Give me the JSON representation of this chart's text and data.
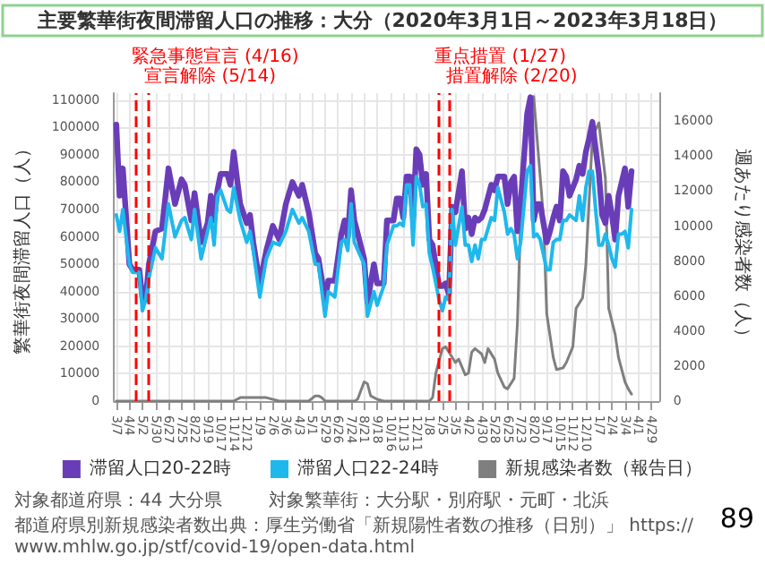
{
  "chart_data": {
    "type": "line",
    "title": "主要繁華街夜間滞留人口の推移：大分（2020年3月1日～2023年3月18日）",
    "ylabel": "繁華街夜間滞留人口（人）",
    "y2label": "週あたり感染者数（人）",
    "x": [
      "2020-03-07",
      "2020-03-14",
      "2020-03-21",
      "2020-04-04",
      "2020-04-11",
      "2020-04-25",
      "2020-05-02",
      "2020-05-09",
      "2020-05-16",
      "2020-05-30",
      "2020-06-13",
      "2020-06-27",
      "2020-07-11",
      "2020-07-25",
      "2020-08-01",
      "2020-08-15",
      "2020-08-22",
      "2020-09-05",
      "2020-09-19",
      "2020-09-26",
      "2020-10-03",
      "2020-10-10",
      "2020-10-17",
      "2020-10-31",
      "2020-11-07",
      "2020-11-14",
      "2020-11-28",
      "2020-12-12",
      "2020-12-19",
      "2020-12-26",
      "2021-01-09",
      "2021-01-23",
      "2021-02-06",
      "2021-02-20",
      "2021-03-06",
      "2021-03-20",
      "2021-04-03",
      "2021-04-10",
      "2021-04-24",
      "2021-05-08",
      "2021-05-15",
      "2021-05-29",
      "2021-06-05",
      "2021-06-19",
      "2021-07-03",
      "2021-07-10",
      "2021-07-17",
      "2021-07-24",
      "2021-07-31",
      "2021-08-21",
      "2021-08-28",
      "2021-09-11",
      "2021-09-18",
      "2021-10-02",
      "2021-10-09",
      "2021-10-23",
      "2021-10-30",
      "2021-11-06",
      "2021-11-13",
      "2021-11-20",
      "2021-11-27",
      "2021-12-04",
      "2021-12-11",
      "2021-12-18",
      "2021-12-25",
      "2022-01-01",
      "2022-01-08",
      "2022-01-15",
      "2022-01-29",
      "2022-02-05",
      "2022-02-12",
      "2022-02-19",
      "2022-02-26",
      "2022-03-05",
      "2022-03-19",
      "2022-03-26",
      "2022-04-02",
      "2022-04-09",
      "2022-04-16",
      "2022-04-23",
      "2022-04-30",
      "2022-05-07",
      "2022-05-21",
      "2022-05-28",
      "2022-06-04",
      "2022-06-18",
      "2022-06-25",
      "2022-07-02",
      "2022-07-09",
      "2022-07-16",
      "2022-07-23",
      "2022-08-06",
      "2022-08-13",
      "2022-08-20",
      "2022-08-27",
      "2022-09-03",
      "2022-09-17",
      "2022-09-24",
      "2022-10-01",
      "2022-10-08",
      "2022-10-15",
      "2022-10-22",
      "2022-10-29",
      "2022-11-05",
      "2022-11-19",
      "2022-11-26",
      "2022-12-03",
      "2022-12-10",
      "2022-12-17",
      "2022-12-24",
      "2022-12-31",
      "2023-01-07",
      "2023-01-14",
      "2023-01-21",
      "2023-01-28",
      "2023-02-04",
      "2023-02-11",
      "2023-02-18",
      "2023-02-25",
      "2023-03-04",
      "2023-03-11",
      "2023-03-18"
    ],
    "series": [
      {
        "name": "滞留人口20-22時",
        "color": "#6a3db8",
        "values": [
          101000,
          75000,
          85000,
          50000,
          48000,
          48000,
          38000,
          37000,
          50000,
          62000,
          63000,
          85000,
          72000,
          81000,
          79000,
          66000,
          76000,
          58000,
          65000,
          75000,
          66000,
          77000,
          83000,
          83000,
          79000,
          91000,
          72000,
          65000,
          68000,
          58000,
          43000,
          55000,
          64000,
          59000,
          72000,
          80000,
          75000,
          79000,
          69000,
          54000,
          52000,
          37000,
          44000,
          44000,
          61000,
          66000,
          60000,
          77000,
          66000,
          52000,
          36000,
          50000,
          43000,
          43000,
          66000,
          66000,
          74000,
          74000,
          67000,
          82000,
          82000,
          67000,
          92000,
          90000,
          79000,
          83000,
          59000,
          57000,
          42000,
          42000,
          43000,
          39000,
          71000,
          69000,
          84000,
          63000,
          67000,
          61000,
          67000,
          66000,
          67000,
          70000,
          79000,
          77000,
          82000,
          82000,
          72000,
          80000,
          82000,
          62000,
          72000,
          105000,
          111000,
          66000,
          72000,
          72000,
          58000,
          62000,
          67000,
          71000,
          66000,
          84000,
          82000,
          75000,
          81000,
          86000,
          83000,
          91000,
          96000,
          102000,
          92000,
          83000,
          68000,
          65000,
          75000,
          68000,
          59000,
          75000,
          80000,
          85000,
          71000,
          84000
        ]
      },
      {
        "name": "滞留人口22-24時",
        "color": "#1fb8ec",
        "values": [
          68000,
          62000,
          70000,
          50000,
          47000,
          47000,
          33000,
          37000,
          45000,
          56000,
          52000,
          72000,
          60000,
          66000,
          67000,
          59000,
          70000,
          52000,
          62000,
          67000,
          57000,
          75000,
          77000,
          70000,
          69000,
          78000,
          66000,
          58000,
          62000,
          55000,
          38000,
          52000,
          58000,
          57000,
          62000,
          70000,
          65000,
          67000,
          62000,
          50000,
          50000,
          31000,
          40000,
          38000,
          58000,
          59000,
          55000,
          72000,
          58000,
          50000,
          31000,
          40000,
          35000,
          42000,
          57000,
          64000,
          64000,
          65000,
          64000,
          79000,
          79000,
          57000,
          82000,
          79000,
          71000,
          72000,
          54000,
          49000,
          37000,
          33000,
          38000,
          37000,
          70000,
          57000,
          71000,
          57000,
          57000,
          51000,
          57000,
          52000,
          59000,
          59000,
          67000,
          66000,
          78000,
          69000,
          61000,
          63000,
          61000,
          52000,
          58000,
          84000,
          86000,
          60000,
          61000,
          59000,
          48000,
          48000,
          58000,
          59000,
          59000,
          66000,
          66000,
          68000,
          66000,
          75000,
          66000,
          78000,
          84000,
          84000,
          70000,
          57000,
          57000,
          61000,
          57000,
          52000,
          49000,
          61000,
          61000,
          62000,
          56000,
          70000
        ]
      },
      {
        "name": "新規感染者数（報告日）",
        "color": "#7f7f7f",
        "axis": "y2",
        "x": [
          "2020-03-07",
          "2020-11-14",
          "2020-11-28",
          "2020-12-12",
          "2021-01-02",
          "2021-01-23",
          "2021-02-20",
          "2021-04-17",
          "2021-04-24",
          "2021-05-08",
          "2021-05-15",
          "2021-05-22",
          "2021-05-29",
          "2021-06-12",
          "2021-07-31",
          "2021-08-07",
          "2021-08-14",
          "2021-08-21",
          "2021-08-28",
          "2021-09-04",
          "2021-09-18",
          "2021-10-02",
          "2022-01-08",
          "2022-01-15",
          "2022-01-22",
          "2022-02-05",
          "2022-02-12",
          "2022-02-19",
          "2022-03-05",
          "2022-03-12",
          "2022-03-26",
          "2022-04-02",
          "2022-04-09",
          "2022-04-16",
          "2022-04-30",
          "2022-05-07",
          "2022-05-14",
          "2022-05-28",
          "2022-06-04",
          "2022-06-18",
          "2022-06-25",
          "2022-07-09",
          "2022-07-16",
          "2022-07-23",
          "2022-08-06",
          "2022-08-20",
          "2022-08-27",
          "2022-09-10",
          "2022-09-17",
          "2022-10-01",
          "2022-10-08",
          "2022-10-22",
          "2022-10-29",
          "2022-11-12",
          "2022-11-19",
          "2022-12-03",
          "2022-12-10",
          "2022-12-17",
          "2022-12-24",
          "2023-01-07",
          "2023-01-21",
          "2023-01-28",
          "2023-02-11",
          "2023-02-18",
          "2023-03-04",
          "2023-03-11",
          "2023-03-18"
        ],
        "values": [
          0,
          0,
          200,
          200,
          200,
          200,
          0,
          0,
          0,
          300,
          300,
          200,
          0,
          0,
          0,
          100,
          600,
          1100,
          1000,
          300,
          100,
          0,
          0,
          200,
          1600,
          3000,
          3100,
          2800,
          2200,
          2400,
          1500,
          1600,
          2800,
          3000,
          2700,
          2200,
          3000,
          2400,
          1600,
          800,
          700,
          1300,
          4400,
          10500,
          16400,
          17400,
          15100,
          10500,
          5000,
          2500,
          1800,
          1900,
          2200,
          3100,
          5300,
          5900,
          7800,
          11400,
          15100,
          15900,
          12700,
          5300,
          3800,
          2500,
          1100,
          700,
          400
        ]
      }
    ],
    "xlim": [
      "2020-03-02",
      "2023-05-16"
    ],
    "xticks": [
      {
        "value": "2020-03-07",
        "label": "3/7"
      },
      {
        "value": "2020-04-04",
        "label": "4/4"
      },
      {
        "value": "2020-05-02",
        "label": "5/2"
      },
      {
        "value": "2020-05-30",
        "label": "5/30"
      },
      {
        "value": "2020-06-27",
        "label": "6/27"
      },
      {
        "value": "2020-07-25",
        "label": "7/25"
      },
      {
        "value": "2020-08-22",
        "label": "8/22"
      },
      {
        "value": "2020-09-19",
        "label": "9/19"
      },
      {
        "value": "2020-10-17",
        "label": "10/17"
      },
      {
        "value": "2020-11-14",
        "label": "11/14"
      },
      {
        "value": "2020-12-12",
        "label": "12/12"
      },
      {
        "value": "2021-01-09",
        "label": "1/9"
      },
      {
        "value": "2021-02-06",
        "label": "2/6"
      },
      {
        "value": "2021-03-06",
        "label": "3/6"
      },
      {
        "value": "2021-04-03",
        "label": "4/3"
      },
      {
        "value": "2021-05-01",
        "label": "5/1"
      },
      {
        "value": "2021-05-29",
        "label": "5/29"
      },
      {
        "value": "2021-06-26",
        "label": "6/26"
      },
      {
        "value": "2021-07-24",
        "label": "7/24"
      },
      {
        "value": "2021-08-21",
        "label": "8/21"
      },
      {
        "value": "2021-09-18",
        "label": "9/18"
      },
      {
        "value": "2021-10-16",
        "label": "10/16"
      },
      {
        "value": "2021-11-13",
        "label": "11/13"
      },
      {
        "value": "2021-12-11",
        "label": "12/11"
      },
      {
        "value": "2022-01-08",
        "label": "1/8"
      },
      {
        "value": "2022-02-05",
        "label": "2/5"
      },
      {
        "value": "2022-03-05",
        "label": "3/5"
      },
      {
        "value": "2022-04-02",
        "label": "4/2"
      },
      {
        "value": "2022-04-30",
        "label": "4/30"
      },
      {
        "value": "2022-05-28",
        "label": "5/28"
      },
      {
        "value": "2022-06-25",
        "label": "6/25"
      },
      {
        "value": "2022-07-23",
        "label": "7/23"
      },
      {
        "value": "2022-08-20",
        "label": "8/20"
      },
      {
        "value": "2022-09-17",
        "label": "9/17"
      },
      {
        "value": "2022-10-15",
        "label": "10/15"
      },
      {
        "value": "2022-11-12",
        "label": "11/12"
      },
      {
        "value": "2022-12-10",
        "label": "12/10"
      },
      {
        "value": "2023-01-07",
        "label": "1/7"
      },
      {
        "value": "2023-02-04",
        "label": "2/4"
      },
      {
        "value": "2023-03-04",
        "label": "3/4"
      },
      {
        "value": "2023-04-01",
        "label": "4/1"
      },
      {
        "value": "2023-04-29",
        "label": "4/29"
      }
    ],
    "ylim": [
      0,
      112500
    ],
    "yticks": [
      0,
      10000,
      20000,
      30000,
      40000,
      50000,
      60000,
      70000,
      80000,
      90000,
      100000,
      110000
    ],
    "y2lim": [
      0,
      17600
    ],
    "y2ticks": [
      0,
      2000,
      4000,
      6000,
      8000,
      10000,
      12000,
      14000,
      16000
    ],
    "ref_lines": [
      {
        "axis": "x",
        "value": "2020-04-16",
        "label": "緊急事態宣言 (4/16)",
        "color": "#ff0000",
        "line_style": "dashed"
      },
      {
        "axis": "x",
        "value": "2020-05-14",
        "label": "宣言解除 (5/14)",
        "color": "#ff0000",
        "line_style": "dashed"
      },
      {
        "axis": "x",
        "value": "2022-01-27",
        "label": "重点措置 (1/27)",
        "color": "#ff0000",
        "line_style": "dashed"
      },
      {
        "axis": "x",
        "value": "2022-02-20",
        "label": "措置解除 (2/20)",
        "color": "#ff0000",
        "line_style": "dashed"
      }
    ],
    "annotations": [
      "対象都道府県：44 大分県",
      "対象繁華街：大分駅・別府駅・元町・北浜",
      "都道府県別新規感染者数出典：厚生労働省「新規陽性者数の推移（日別）」 https://www.mhlw.go.jp/stf/covid-19/open-data.html",
      "89"
    ],
    "grid": true,
    "legend": "bottom",
    "marker": "none",
    "line_style": "solid"
  }
}
